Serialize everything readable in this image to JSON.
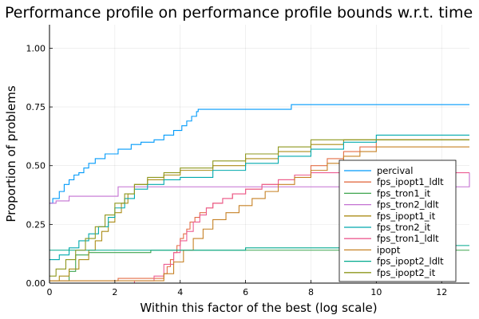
{
  "chart_data": {
    "type": "line",
    "title": "Performance profile on performance profile bounds w.r.t. time",
    "xlabel": "Within this factor of the best (log scale)",
    "ylabel": "Proportion of problems",
    "xlim": [
      0,
      12.85
    ],
    "ylim": [
      0,
      1.1
    ],
    "xticks": [
      0,
      2,
      4,
      6,
      8,
      10,
      12
    ],
    "yticks": [
      0,
      0.25,
      0.5,
      0.75,
      1.0
    ],
    "xtick_labels": [
      "0",
      "2",
      "4",
      "6",
      "8",
      "10",
      "12"
    ],
    "ytick_labels": [
      "0.00",
      "0.25",
      "0.50",
      "0.75",
      "1.00"
    ],
    "grid": true,
    "legend_position": "bottom-right",
    "steps": "post",
    "series": [
      {
        "name": "percival",
        "color": "#009AFA",
        "x": [
          0,
          0.1,
          0.3,
          0.45,
          0.6,
          0.75,
          0.9,
          1.05,
          1.2,
          1.4,
          1.7,
          2.1,
          2.5,
          2.8,
          3.2,
          3.5,
          3.8,
          4.05,
          4.2,
          4.35,
          4.5,
          4.55,
          7.4,
          12.85
        ],
        "y": [
          0.34,
          0.36,
          0.39,
          0.42,
          0.44,
          0.46,
          0.47,
          0.49,
          0.51,
          0.53,
          0.55,
          0.57,
          0.59,
          0.6,
          0.61,
          0.63,
          0.65,
          0.67,
          0.69,
          0.71,
          0.73,
          0.74,
          0.76,
          0.76
        ]
      },
      {
        "name": "fps_ipopt1_ldlt",
        "color": "#E36F47",
        "x": [
          0,
          2.1,
          3.5,
          3.6,
          3.7,
          3.8,
          3.9,
          4.0,
          4.1,
          4.2,
          4.3,
          4.45,
          4.6,
          4.8,
          5.0,
          5.3,
          5.6,
          6.0,
          6.5,
          7.0,
          7.5,
          8.0,
          8.5,
          9.0,
          9.5,
          10.0,
          12.85
        ],
        "y": [
          0.01,
          0.02,
          0.04,
          0.07,
          0.1,
          0.13,
          0.16,
          0.19,
          0.21,
          0.23,
          0.26,
          0.28,
          0.3,
          0.32,
          0.34,
          0.36,
          0.38,
          0.4,
          0.42,
          0.44,
          0.46,
          0.5,
          0.53,
          0.56,
          0.58,
          0.61,
          0.61
        ]
      },
      {
        "name": "fps_tron1_it",
        "color": "#3EA44E",
        "x": [
          0,
          0.6,
          0.8,
          1.2,
          2.0,
          3.1,
          12.85
        ],
        "y": [
          0.01,
          0.05,
          0.12,
          0.13,
          0.13,
          0.14,
          0.14
        ]
      },
      {
        "name": "fps_tron2_ldlt",
        "color": "#C371D2",
        "x": [
          0,
          0.2,
          0.6,
          0.9,
          2.1,
          12.85
        ],
        "y": [
          0.34,
          0.35,
          0.37,
          0.37,
          0.41,
          0.47
        ]
      },
      {
        "name": "fps_ipopt1_it",
        "color": "#AC8D18",
        "x": [
          0,
          0.3,
          0.6,
          0.9,
          1.2,
          1.4,
          1.6,
          1.8,
          2.0,
          2.2,
          2.4,
          2.6,
          3.0,
          3.5,
          4.0,
          5.0,
          6.0,
          7.0,
          8.0,
          9.0,
          12.85
        ],
        "y": [
          0.01,
          0.03,
          0.06,
          0.1,
          0.14,
          0.18,
          0.22,
          0.26,
          0.3,
          0.34,
          0.38,
          0.42,
          0.44,
          0.46,
          0.48,
          0.5,
          0.53,
          0.56,
          0.59,
          0.61,
          0.61
        ]
      },
      {
        "name": "fps_tron2_it",
        "color": "#00A9AD",
        "x": [
          0,
          0.3,
          0.6,
          0.9,
          1.2,
          1.5,
          1.8,
          2.0,
          2.3,
          2.6,
          3.0,
          3.5,
          4.0,
          5.0,
          6.0,
          7.0,
          8.0,
          9.0,
          10.0,
          12.85
        ],
        "y": [
          0.1,
          0.12,
          0.15,
          0.18,
          0.21,
          0.24,
          0.28,
          0.32,
          0.36,
          0.4,
          0.42,
          0.44,
          0.45,
          0.48,
          0.51,
          0.54,
          0.57,
          0.6,
          0.63,
          0.63
        ]
      },
      {
        "name": "fps_tron1_ldlt",
        "color": "#ED5D92",
        "x": [
          0,
          2.6,
          3.2,
          3.5,
          3.8,
          4.0,
          4.2,
          4.4,
          4.6,
          4.8,
          5.0,
          5.3,
          5.6,
          6.0,
          6.5,
          7.0,
          7.5,
          8.0,
          12.85
        ],
        "y": [
          0.0,
          0.01,
          0.03,
          0.08,
          0.13,
          0.18,
          0.22,
          0.26,
          0.29,
          0.32,
          0.34,
          0.36,
          0.38,
          0.4,
          0.42,
          0.44,
          0.46,
          0.47,
          0.47
        ]
      },
      {
        "name": "ipopt",
        "color": "#C68125",
        "x": [
          0,
          3.5,
          3.8,
          4.1,
          4.4,
          4.7,
          5.0,
          5.4,
          5.8,
          6.2,
          6.6,
          7.0,
          7.5,
          8.0,
          8.5,
          9.0,
          9.5,
          10.0,
          12.85
        ],
        "y": [
          0.01,
          0.04,
          0.09,
          0.14,
          0.19,
          0.23,
          0.27,
          0.3,
          0.33,
          0.36,
          0.39,
          0.42,
          0.45,
          0.48,
          0.51,
          0.54,
          0.56,
          0.58,
          0.58
        ]
      },
      {
        "name": "fps_ipopt2_ldlt",
        "color": "#00A98D",
        "x": [
          0,
          2.0,
          6.0,
          10.0,
          12.85
        ],
        "y": [
          0.14,
          0.14,
          0.15,
          0.16,
          0.16
        ]
      },
      {
        "name": "fps_ipopt2_it",
        "color": "#8E971E",
        "x": [
          0,
          0.2,
          0.5,
          0.8,
          1.1,
          1.4,
          1.7,
          2.0,
          2.3,
          2.6,
          3.0,
          3.5,
          4.0,
          5.0,
          6.0,
          7.0,
          8.0,
          12.85
        ],
        "y": [
          0.03,
          0.06,
          0.1,
          0.14,
          0.19,
          0.24,
          0.29,
          0.34,
          0.38,
          0.42,
          0.45,
          0.47,
          0.49,
          0.52,
          0.55,
          0.58,
          0.61,
          0.61
        ]
      }
    ]
  }
}
